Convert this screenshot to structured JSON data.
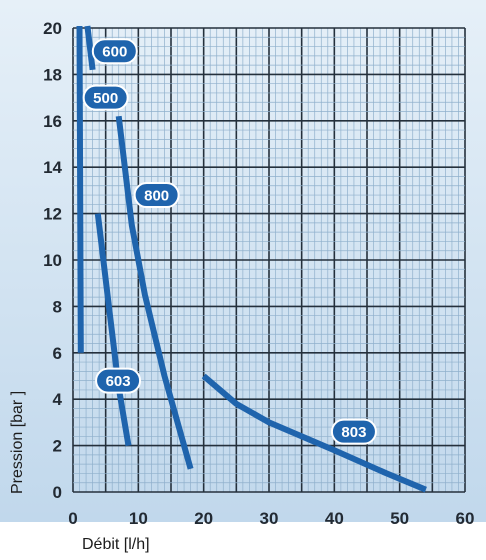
{
  "chart_data": {
    "type": "line",
    "xlabel": "Débit [l/h]",
    "ylabel": "Pression [bar ]",
    "xlim": [
      0,
      60
    ],
    "ylim": [
      0,
      20
    ],
    "x_ticks": [
      "0",
      "10",
      "20",
      "30",
      "40",
      "50",
      "60"
    ],
    "y_ticks": [
      "0",
      "2",
      "4",
      "6",
      "8",
      "10",
      "12",
      "14",
      "16",
      "18",
      "20"
    ],
    "grid": true,
    "line_color": "#1f64ad",
    "label_bg": "#1f64ad",
    "background_top": "#e6f0f8",
    "background_bottom": "#bed6eb",
    "series": [
      {
        "name": "600",
        "points": [
          [
            2.2,
            20.5
          ],
          [
            3.0,
            18.2
          ]
        ]
      },
      {
        "name": "500",
        "points": [
          [
            1.0,
            20.5
          ],
          [
            1.2,
            6.0
          ]
        ]
      },
      {
        "name": "800",
        "points": [
          [
            7.0,
            16.2
          ],
          [
            9.0,
            11.5
          ],
          [
            11.0,
            8.5
          ],
          [
            14.0,
            5.0
          ],
          [
            18.0,
            1.0
          ]
        ]
      },
      {
        "name": "603",
        "points": [
          [
            3.8,
            12.0
          ],
          [
            5.5,
            8.0
          ],
          [
            7.0,
            4.5
          ],
          [
            8.5,
            2.0
          ]
        ]
      },
      {
        "name": "803",
        "points": [
          [
            20.0,
            5.0
          ],
          [
            25.0,
            3.8
          ],
          [
            30.0,
            3.0
          ],
          [
            40.0,
            1.8
          ],
          [
            48.0,
            0.8
          ],
          [
            54.0,
            0.1
          ]
        ]
      }
    ]
  }
}
